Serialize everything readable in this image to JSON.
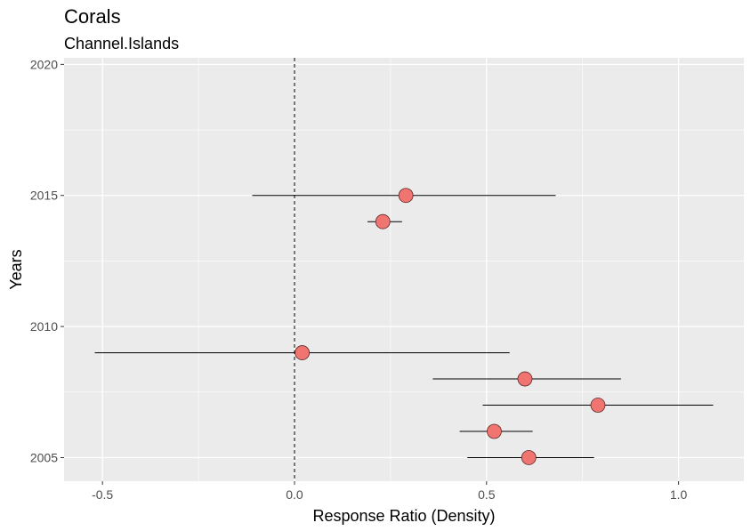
{
  "chart_data": {
    "type": "scatter",
    "title": "Corals",
    "subtitle": "Channel.Islands",
    "xlabel": "Response Ratio (Density)",
    "ylabel": "Years",
    "xlim": [
      -0.6,
      1.17
    ],
    "ylim": [
      2004.1,
      2020.25
    ],
    "xticks": [
      -0.5,
      0.0,
      0.5,
      1.0
    ],
    "xtick_labels": [
      "-0.5",
      "0.0",
      "0.5",
      "1.0"
    ],
    "yticks": [
      2005,
      2010,
      2015,
      2020
    ],
    "ytick_labels": [
      "2005",
      "2010",
      "2015",
      "2020"
    ],
    "reference_line": {
      "x": 0,
      "style": "dashed"
    },
    "grid": true,
    "legend": "none",
    "colors": {
      "point_fill": "#F07470",
      "panel_bg": "#EBEBEB",
      "grid": "#FFFFFF"
    },
    "points": [
      {
        "year": 2005,
        "x": 0.61,
        "ci": [
          0.45,
          0.78
        ]
      },
      {
        "year": 2006,
        "x": 0.52,
        "ci": [
          0.43,
          0.62
        ]
      },
      {
        "year": 2007,
        "x": 0.79,
        "ci": [
          0.49,
          1.09
        ]
      },
      {
        "year": 2008,
        "x": 0.6,
        "ci": [
          0.36,
          0.85
        ]
      },
      {
        "year": 2009,
        "x": 0.02,
        "ci": [
          -0.52,
          0.56
        ]
      },
      {
        "year": 2014,
        "x": 0.23,
        "ci": [
          0.19,
          0.28
        ]
      },
      {
        "year": 2015,
        "x": 0.29,
        "ci": [
          -0.11,
          0.68
        ]
      }
    ]
  }
}
